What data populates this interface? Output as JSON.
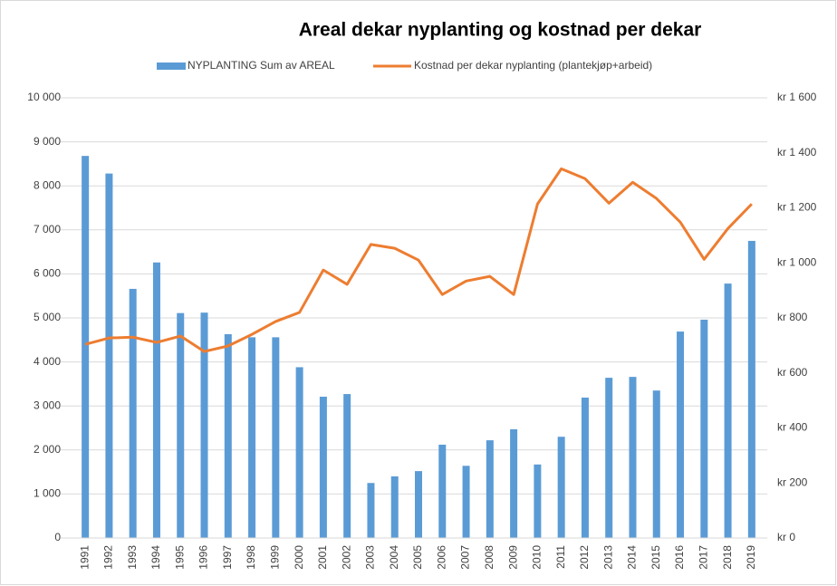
{
  "chart_data": {
    "type": "bar-line",
    "title": "Areal dekar nyplanting og kostnad per dekar",
    "categories": [
      "1991",
      "1992",
      "1993",
      "1994",
      "1995",
      "1996",
      "1997",
      "1998",
      "1999",
      "2000",
      "2001",
      "2002",
      "2003",
      "2004",
      "2005",
      "2006",
      "2007",
      "2008",
      "2009",
      "2010",
      "2011",
      "2012",
      "2013",
      "2014",
      "2015",
      "2016",
      "2017",
      "2018",
      "2019"
    ],
    "series": [
      {
        "name": "NYPLANTING Sum av AREAL",
        "type": "bar",
        "color": "#5b9bd5",
        "values": [
          8680,
          8280,
          5660,
          6260,
          5110,
          5120,
          4630,
          4560,
          4560,
          3880,
          3210,
          3270,
          1250,
          1400,
          1520,
          2120,
          1640,
          2220,
          2470,
          1670,
          2300,
          3190,
          3640,
          3660,
          3350,
          4690,
          4960,
          5780,
          6750
        ]
      },
      {
        "name": "Kostnad per dekar nyplanting (plantekjøp+arbeid)",
        "type": "line",
        "axis": "y2",
        "color": "#ed7d31",
        "values": [
          704,
          727,
          730,
          711,
          734,
          678,
          698,
          740,
          787,
          820,
          974,
          922,
          1067,
          1053,
          1010,
          885,
          934,
          951,
          885,
          1214,
          1342,
          1306,
          1217,
          1293,
          1234,
          1148,
          1013,
          1125,
          1214
        ]
      }
    ],
    "ylim": [
      0,
      10000
    ],
    "yticks": [
      0,
      {
        "value": 1000,
        "label": "1 000"
      },
      {
        "value": 2000,
        "label": "2 000"
      },
      {
        "value": 3000,
        "label": "3 000"
      },
      {
        "value": 4000,
        "label": "4 000"
      },
      {
        "value": 5000,
        "label": "5 000"
      },
      {
        "value": 6000,
        "label": "6 000"
      },
      {
        "value": 7000,
        "label": "7 000"
      },
      {
        "value": 8000,
        "label": "8 000"
      },
      {
        "value": 9000,
        "label": "9 000"
      },
      {
        "value": 10000,
        "label": "10 000"
      }
    ],
    "y2lim": [
      0,
      1600
    ],
    "y2ticks": [
      {
        "value": 0,
        "label": "kr 0"
      },
      {
        "value": 200,
        "label": "kr 200"
      },
      {
        "value": 400,
        "label": "kr 400"
      },
      {
        "value": 600,
        "label": "kr 600"
      },
      {
        "value": 800,
        "label": "kr 800"
      },
      {
        "value": 1000,
        "label": "kr 1 000"
      },
      {
        "value": 1200,
        "label": "kr 1 200"
      },
      {
        "value": 1400,
        "label": "kr 1 400"
      },
      {
        "value": 1600,
        "label": "kr 1 600"
      }
    ],
    "grid": true,
    "legend": "top"
  }
}
